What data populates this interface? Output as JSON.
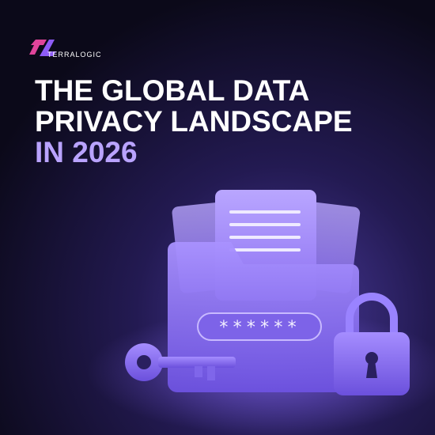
{
  "brand": "TERRALOGIC",
  "headline": {
    "lines": [
      "THE GLOBAL DATA",
      "PRIVACY LANDSCAPE",
      "IN 2026"
    ]
  },
  "illustration": {
    "password_mask": "******"
  }
}
